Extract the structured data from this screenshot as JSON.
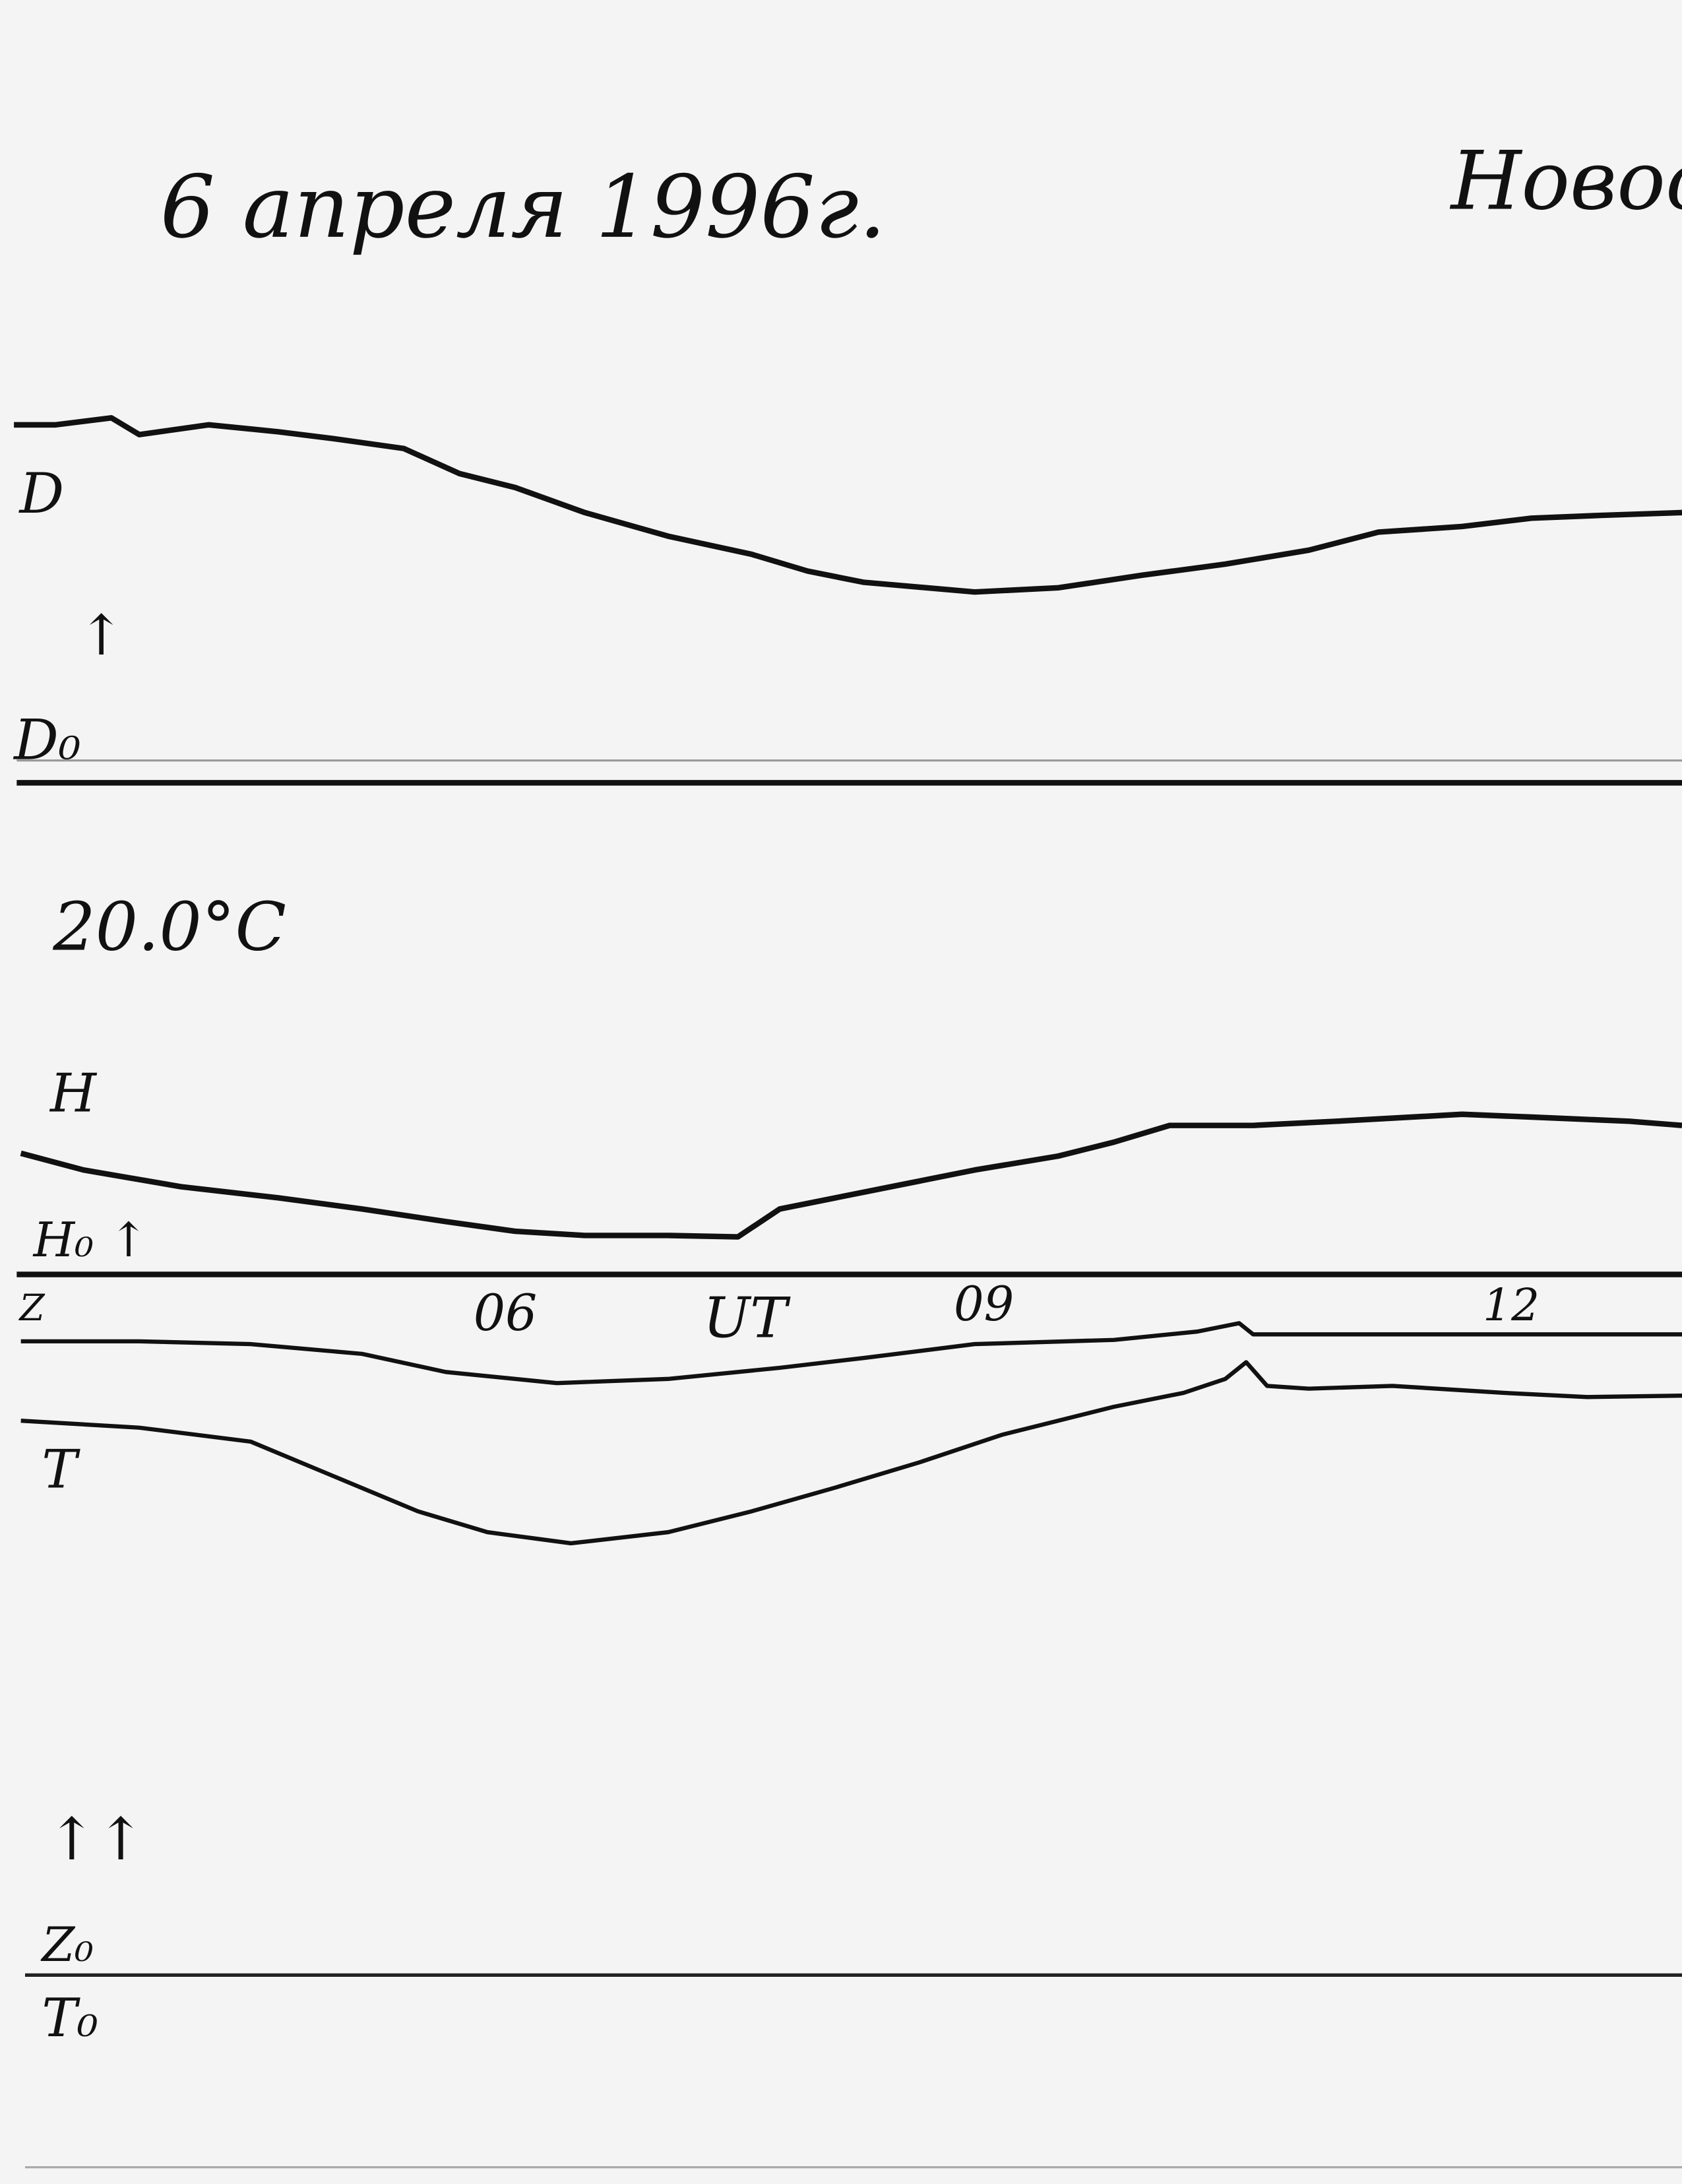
{
  "header": {
    "date": "6 апреля 1996г.",
    "station": "Новос"
  },
  "panels": {
    "d": {
      "label": "D",
      "arrow": "↑",
      "baseline": "D₀"
    },
    "temperature": "20.0°C",
    "h": {
      "label": "H",
      "baseline": "H₀ ↑"
    },
    "z": {
      "label": "Z",
      "arrows": "↑↑",
      "baseline": "Z₀"
    },
    "t": {
      "label": "T",
      "baseline": "T₀"
    }
  },
  "time_axis": {
    "ticks": [
      "06",
      "09",
      "12"
    ],
    "unit": "UT"
  }
}
